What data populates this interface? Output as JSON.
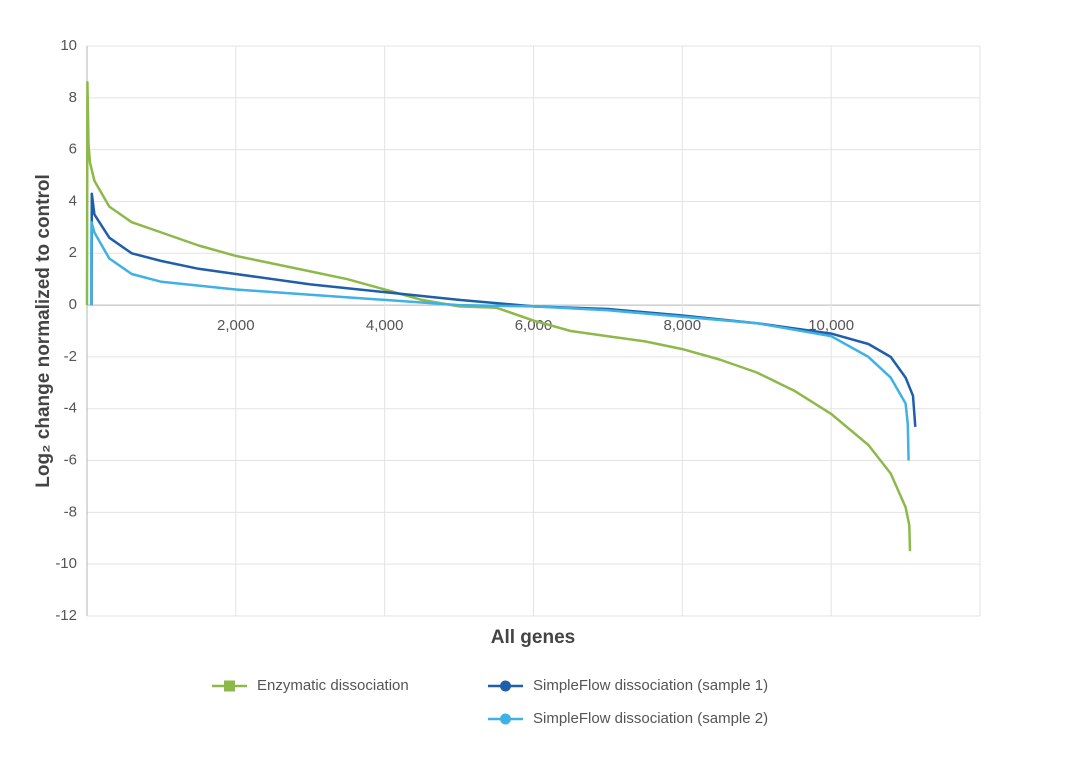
{
  "chart_data": {
    "type": "line",
    "x_label": "All genes",
    "y_label": "Log₂ change normalized to control",
    "xlim": [
      0,
      12000
    ],
    "xticks": [
      {
        "value": 2000,
        "label": "2,000"
      },
      {
        "value": 4000,
        "label": "4,000"
      },
      {
        "value": 6000,
        "label": "6,000"
      },
      {
        "value": 8000,
        "label": "8,000"
      },
      {
        "value": 10000,
        "label": "10,000"
      }
    ],
    "ylim": [
      -12,
      10
    ],
    "yticks": [
      -12,
      -10,
      -8,
      -6,
      -4,
      -2,
      0,
      2,
      4,
      6,
      8,
      10
    ],
    "grid": true,
    "series": [
      {
        "name": "Enzymatic dissociation",
        "color": "#8db84a",
        "marker": "square",
        "x": [
          0,
          5,
          20,
          40,
          100,
          300,
          600,
          1000,
          1500,
          2000,
          2500,
          3000,
          3500,
          4000,
          4500,
          5000,
          5500,
          6000,
          6500,
          7000,
          7500,
          8000,
          8500,
          9000,
          9500,
          10000,
          10500,
          10800,
          11000,
          11050,
          11060
        ],
        "values": [
          0,
          8.6,
          6.2,
          5.5,
          4.8,
          3.8,
          3.2,
          2.8,
          2.3,
          1.9,
          1.6,
          1.3,
          1.0,
          0.6,
          0.2,
          -0.05,
          -0.1,
          -0.6,
          -1.0,
          -1.2,
          -1.4,
          -1.7,
          -2.1,
          -2.6,
          -3.3,
          -4.2,
          -5.4,
          -6.5,
          -7.8,
          -8.5,
          -9.5
        ]
      },
      {
        "name": "SimpleFlow dissociation (sample 1)",
        "color": "#1f5ea8",
        "marker": "circle",
        "x": [
          60,
          65,
          100,
          300,
          600,
          1000,
          1500,
          2000,
          3000,
          4000,
          5000,
          6000,
          7000,
          8000,
          9000,
          10000,
          10500,
          10800,
          11000,
          11100,
          11130
        ],
        "values": [
          0,
          4.3,
          3.5,
          2.6,
          2.0,
          1.7,
          1.4,
          1.2,
          0.8,
          0.5,
          0.2,
          -0.05,
          -0.15,
          -0.4,
          -0.7,
          -1.1,
          -1.5,
          -2.0,
          -2.8,
          -3.5,
          -4.7
        ]
      },
      {
        "name": "SimpleFlow dissociation (sample 2)",
        "color": "#3fb1e5",
        "marker": "circle",
        "x": [
          55,
          60,
          100,
          300,
          600,
          1000,
          2000,
          3000,
          4000,
          5000,
          6000,
          7000,
          8000,
          9000,
          10000,
          10500,
          10800,
          11000,
          11030,
          11040
        ],
        "values": [
          0,
          3.2,
          2.8,
          1.8,
          1.2,
          0.9,
          0.6,
          0.4,
          0.2,
          0.0,
          -0.05,
          -0.2,
          -0.45,
          -0.7,
          -1.2,
          -2.0,
          -2.8,
          -3.8,
          -4.6,
          -6.0
        ]
      }
    ]
  }
}
